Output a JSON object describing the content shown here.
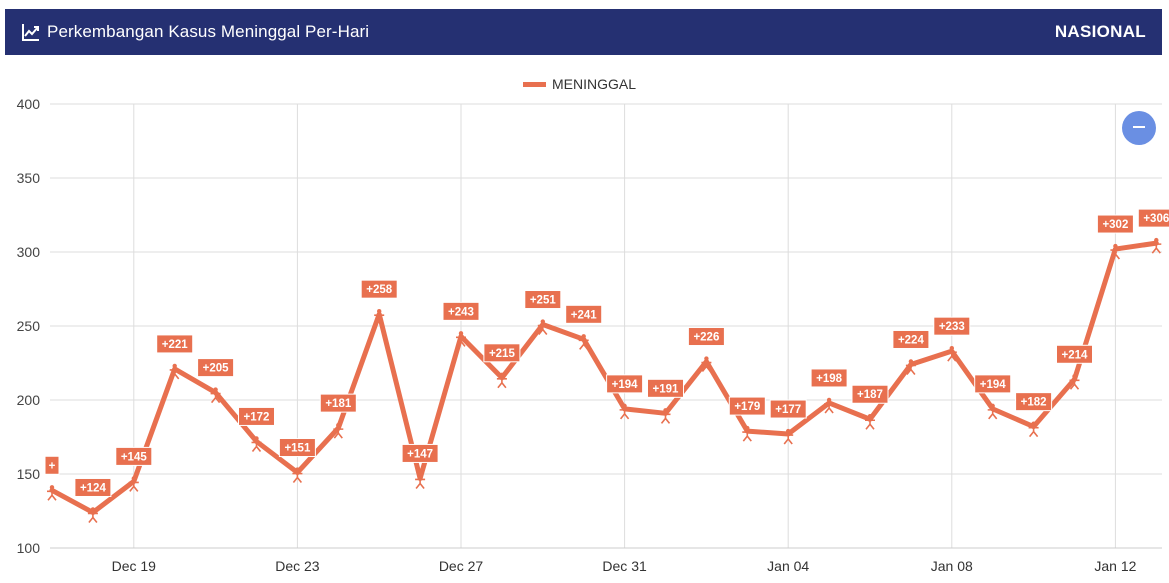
{
  "header": {
    "title": "Perkembangan Kasus Meninggal Per-Hari",
    "region": "NASIONAL",
    "icon": "line-chart-icon"
  },
  "controls": {
    "zoom_icon": "minus-icon"
  },
  "colors": {
    "header_bg": "#253072",
    "series": "#e8704f",
    "grid": "#dddddd",
    "zoom_button": "#6a8fe3"
  },
  "chart_data": {
    "type": "line",
    "title": "",
    "legend": {
      "position": "top-center",
      "entries": [
        "MENINGGAL"
      ]
    },
    "grid": true,
    "ylim": [
      100,
      400
    ],
    "y_ticks": [
      100,
      150,
      200,
      250,
      300,
      350,
      400
    ],
    "x_tick_labels": [
      "Dec 19",
      "Dec 23",
      "Dec 27",
      "Dec 31",
      "Jan 04",
      "Jan 08",
      "Jan 12"
    ],
    "series": [
      {
        "name": "MENINGGAL",
        "x": [
          "Dec 17",
          "Dec 18",
          "Dec 19",
          "Dec 20",
          "Dec 21",
          "Dec 22",
          "Dec 23",
          "Dec 24",
          "Dec 25",
          "Dec 26",
          "Dec 27",
          "Dec 28",
          "Dec 29",
          "Dec 30",
          "Dec 31",
          "Jan 01",
          "Jan 02",
          "Jan 03",
          "Jan 04",
          "Jan 05",
          "Jan 06",
          "Jan 07",
          "Jan 08",
          "Jan 09",
          "Jan 10",
          "Jan 11",
          "Jan 12",
          "Jan 13"
        ],
        "values": [
          139,
          124,
          145,
          221,
          205,
          172,
          151,
          181,
          258,
          147,
          243,
          215,
          251,
          241,
          194,
          191,
          226,
          179,
          177,
          198,
          187,
          224,
          233,
          194,
          182,
          214,
          302,
          306
        ],
        "labels": [
          "+",
          "+124",
          "+145",
          "+221",
          "+205",
          "+172",
          "+151",
          "+181",
          "+258",
          "+147",
          "+243",
          "+215",
          "+251",
          "+241",
          "+194",
          "+191",
          "+226",
          "+179",
          "+177",
          "+198",
          "+187",
          "+224",
          "+233",
          "+194",
          "+182",
          "+214",
          "+302",
          "+306"
        ]
      }
    ]
  }
}
